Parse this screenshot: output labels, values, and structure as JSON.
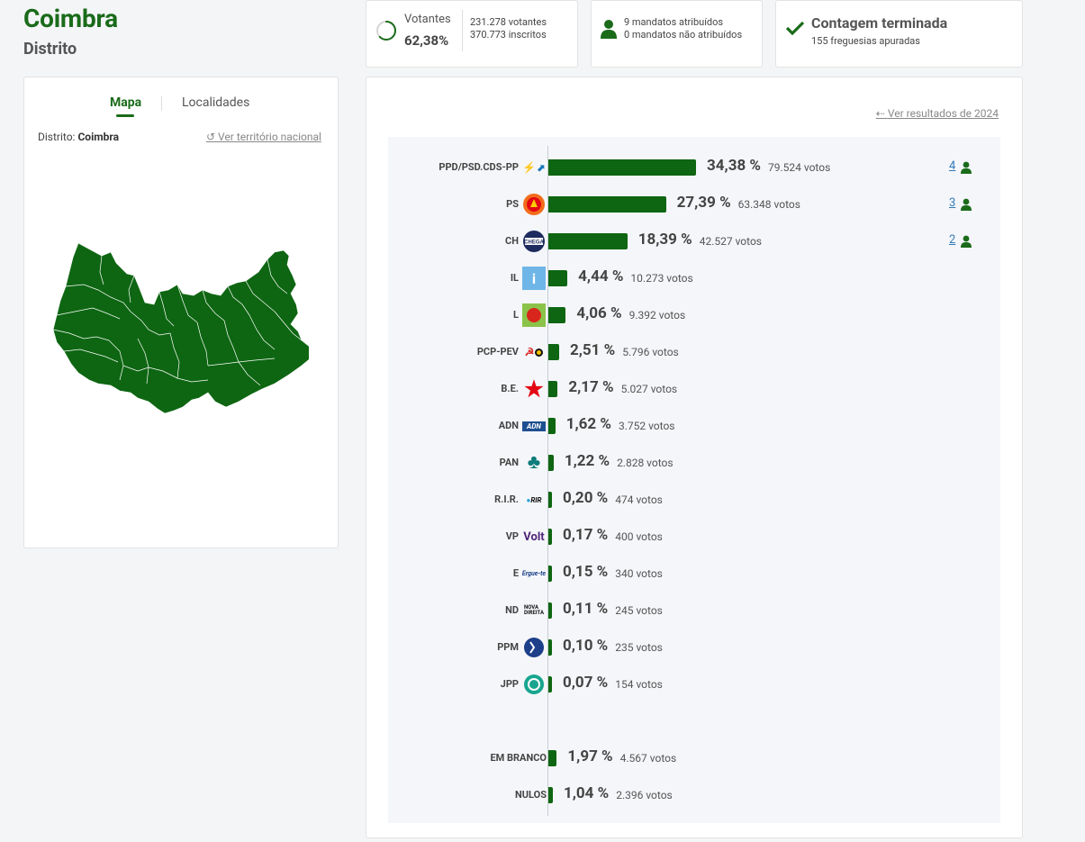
{
  "header": {
    "title": "Coimbra",
    "subtitle": "Distrito"
  },
  "votantes": {
    "label": "Votantes",
    "pct": "62,38%",
    "votantes": "231.278 votantes",
    "inscritos": "370.773 inscritos",
    "ratio": 0.6238
  },
  "mandatos": {
    "atribuidos": "9 mandatos atribuídos",
    "nao_atribuidos": "0 mandatos não atribuídos"
  },
  "contagem": {
    "title": "Contagem terminada",
    "sub": "155 freguesias apuradas"
  },
  "map_panel": {
    "tab_mapa": "Mapa",
    "tab_localidades": "Localidades",
    "distrito_prefix": "Distrito:",
    "distrito_name": "Coimbra",
    "ver_territorio": "Ver território nacional"
  },
  "results": {
    "ver_2024": "Ver resultados de 2024",
    "parties": [
      {
        "name": "PPD/PSD.CDS-PP",
        "pct": "34,38 %",
        "votes": "79.524 votos",
        "seats": "4",
        "share": 34.38,
        "logo": "psd-cds-logo"
      },
      {
        "name": "PS",
        "pct": "27,39 %",
        "votes": "63.348 votos",
        "seats": "3",
        "share": 27.39,
        "logo": "ps-logo"
      },
      {
        "name": "CH",
        "pct": "18,39 %",
        "votes": "42.527 votos",
        "seats": "2",
        "share": 18.39,
        "logo": "chega-logo"
      },
      {
        "name": "IL",
        "pct": "4,44 %",
        "votes": "10.273 votos",
        "seats": "",
        "share": 4.44,
        "logo": "il-logo"
      },
      {
        "name": "L",
        "pct": "4,06 %",
        "votes": "9.392 votos",
        "seats": "",
        "share": 4.06,
        "logo": "livre-logo"
      },
      {
        "name": "PCP-PEV",
        "pct": "2,51 %",
        "votes": "5.796 votos",
        "seats": "",
        "share": 2.51,
        "logo": "pcp-pev-logo"
      },
      {
        "name": "B.E.",
        "pct": "2,17 %",
        "votes": "5.027 votos",
        "seats": "",
        "share": 2.17,
        "logo": "be-logo"
      },
      {
        "name": "ADN",
        "pct": "1,62 %",
        "votes": "3.752 votos",
        "seats": "",
        "share": 1.62,
        "logo": "adn-logo"
      },
      {
        "name": "PAN",
        "pct": "1,22 %",
        "votes": "2.828 votos",
        "seats": "",
        "share": 1.22,
        "logo": "pan-logo"
      },
      {
        "name": "R.I.R.",
        "pct": "0,20 %",
        "votes": "474 votos",
        "seats": "",
        "share": 0.2,
        "logo": "rir-logo"
      },
      {
        "name": "VP",
        "pct": "0,17 %",
        "votes": "400 votos",
        "seats": "",
        "share": 0.17,
        "logo": "volt-logo"
      },
      {
        "name": "E",
        "pct": "0,15 %",
        "votes": "340 votos",
        "seats": "",
        "share": 0.15,
        "logo": "ergue-te-logo"
      },
      {
        "name": "ND",
        "pct": "0,11 %",
        "votes": "245 votos",
        "seats": "",
        "share": 0.11,
        "logo": "nova-direita-logo"
      },
      {
        "name": "PPM",
        "pct": "0,10 %",
        "votes": "235 votos",
        "seats": "",
        "share": 0.1,
        "logo": "ppm-logo"
      },
      {
        "name": "JPP",
        "pct": "0,07 %",
        "votes": "154 votos",
        "seats": "",
        "share": 0.07,
        "logo": "jpp-logo"
      }
    ],
    "others": [
      {
        "name": "EM BRANCO",
        "pct": "1,97 %",
        "votes": "4.567 votos",
        "share": 1.97
      },
      {
        "name": "NULOS",
        "pct": "1,04 %",
        "votes": "2.396 votos",
        "share": 1.04
      }
    ]
  },
  "colors": {
    "brand_green": "#1a6b1a",
    "bar_green": "#0e6612",
    "link_blue": "#337ab7"
  }
}
